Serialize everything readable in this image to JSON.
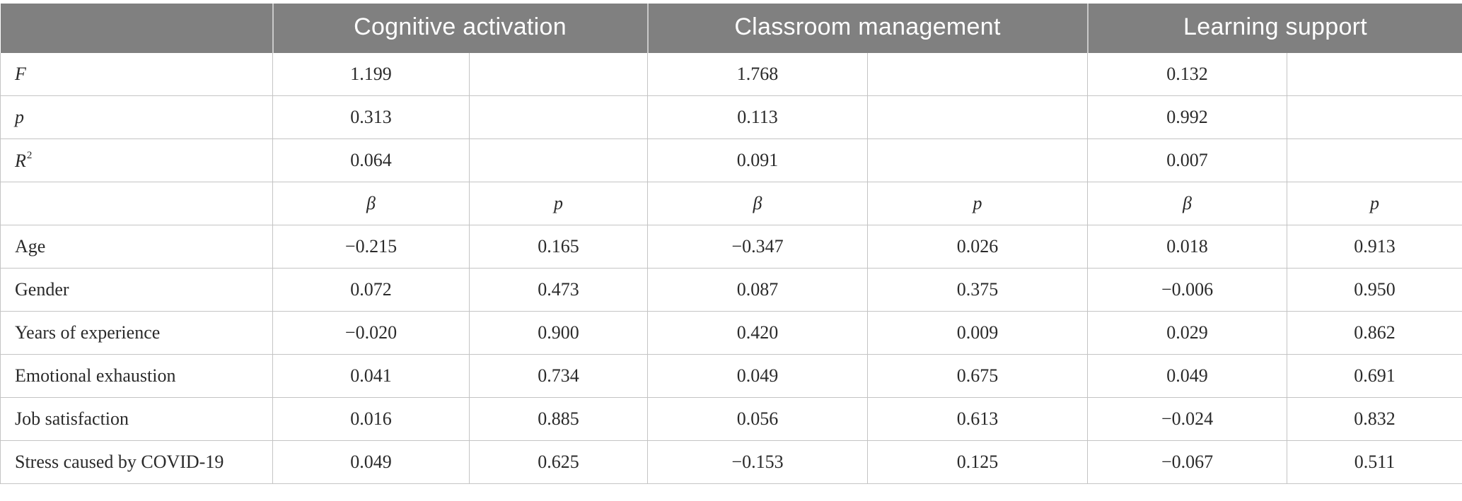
{
  "header": {
    "col_blank": "",
    "cognitive_activation": "Cognitive activation",
    "classroom_management": "Classroom management",
    "learning_support": "Learning support"
  },
  "model_rows": [
    {
      "label": "F",
      "ca": "1.199",
      "cm": "1.768",
      "ls": "0.132"
    },
    {
      "label": "p",
      "ca": "0.313",
      "cm": "0.113",
      "ls": "0.992"
    },
    {
      "label": "R",
      "label_sup": "2",
      "ca": "0.064",
      "cm": "0.091",
      "ls": "0.007"
    }
  ],
  "subheader": {
    "label": "",
    "ca_b": "β",
    "ca_p": "p",
    "cm_b": "β",
    "cm_p": "p",
    "ls_b": "β",
    "ls_p": "p"
  },
  "predictor_rows": [
    {
      "label": "Age",
      "ca_b": "−0.215",
      "ca_p": "0.165",
      "cm_b": "−0.347",
      "cm_p": "0.026",
      "ls_b": "0.018",
      "ls_p": "0.913"
    },
    {
      "label": "Gender",
      "ca_b": "0.072",
      "ca_p": "0.473",
      "cm_b": "0.087",
      "cm_p": "0.375",
      "ls_b": "−0.006",
      "ls_p": "0.950"
    },
    {
      "label": "Years of experience",
      "ca_b": "−0.020",
      "ca_p": "0.900",
      "cm_b": "0.420",
      "cm_p": "0.009",
      "ls_b": "0.029",
      "ls_p": "0.862"
    },
    {
      "label": "Emotional exhaustion",
      "ca_b": "0.041",
      "ca_p": "0.734",
      "cm_b": "0.049",
      "cm_p": "0.675",
      "ls_b": "0.049",
      "ls_p": "0.691"
    },
    {
      "label": "Job satisfaction",
      "ca_b": "0.016",
      "ca_p": "0.885",
      "cm_b": "0.056",
      "cm_p": "0.613",
      "ls_b": "−0.024",
      "ls_p": "0.832"
    },
    {
      "label": "Stress caused by COVID-19",
      "ca_b": "0.049",
      "ca_p": "0.625",
      "cm_b": "−0.153",
      "cm_p": "0.125",
      "ls_b": "−0.067",
      "ls_p": "0.511"
    }
  ],
  "colors": {
    "header_bg": "#808080",
    "header_text": "#ffffff",
    "grid_line": "#c4c4c4",
    "body_text": "#2a2a2a"
  }
}
